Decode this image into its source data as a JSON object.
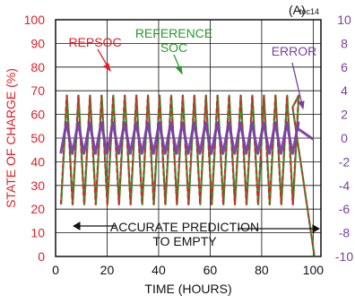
{
  "page": {
    "title": "",
    "corner_label": "toc14",
    "clipped_title_text": "(A)"
  },
  "chart_data": {
    "type": "line",
    "xlabel": "TIME (HOURS)",
    "ylabel_left": "STATE OF CHARGE (%)",
    "ylabel_right": "",
    "xlim": [
      0,
      103
    ],
    "ylim_left": [
      0,
      100
    ],
    "ylim_right": [
      -10,
      10
    ],
    "x_ticks": [
      0,
      20,
      40,
      60,
      80,
      100
    ],
    "y_ticks_left": [
      0,
      10,
      20,
      30,
      40,
      50,
      60,
      70,
      80,
      90,
      100
    ],
    "y_ticks_right": [
      -10,
      -8,
      -6,
      -4,
      -2,
      0,
      2,
      4,
      6,
      8,
      10
    ],
    "grid": true,
    "series": [
      {
        "name": "REPSOC",
        "axis": "left",
        "color": "#e0202a",
        "cycle_count": 21,
        "cycle_period_hours": 4.5,
        "min": 22,
        "max": 68,
        "final_discharge": {
          "x": [
            92,
            100.5
          ],
          "y": [
            63,
            0
          ]
        }
      },
      {
        "name": "REFERENCE SOC",
        "axis": "left",
        "color": "#2a9a2a",
        "cycle_count": 21,
        "cycle_period_hours": 4.5,
        "min": 22,
        "max": 68,
        "final_discharge": {
          "x": [
            92,
            100.5
          ],
          "y": [
            63,
            0
          ]
        }
      },
      {
        "name": "ERROR",
        "axis": "right",
        "color": "#7a3fa0",
        "cycle_count": 21,
        "cycle_period_hours": 4.5,
        "min": -1.3,
        "max": 1.3,
        "tail": {
          "x": [
            94,
            96,
            98,
            100
          ],
          "y": [
            0.8,
            0.5,
            0.2,
            -0.1
          ]
        }
      }
    ],
    "annotations": [
      {
        "text": "REPSOC",
        "color": "#e0202a"
      },
      {
        "text": "REFERENCE",
        "color": "#2a9a2a"
      },
      {
        "text": "SOC",
        "color": "#2a9a2a"
      },
      {
        "text": "ERROR",
        "color": "#7a3fa0"
      },
      {
        "text": "ACCURATE PREDICTION",
        "color": "#111111"
      },
      {
        "text": "TO EMPTY",
        "color": "#111111"
      }
    ]
  },
  "colors": {
    "left_axis": "#e0202a",
    "right_axis": "#7a3fa0",
    "grid": "#111111",
    "text": "#111111"
  }
}
